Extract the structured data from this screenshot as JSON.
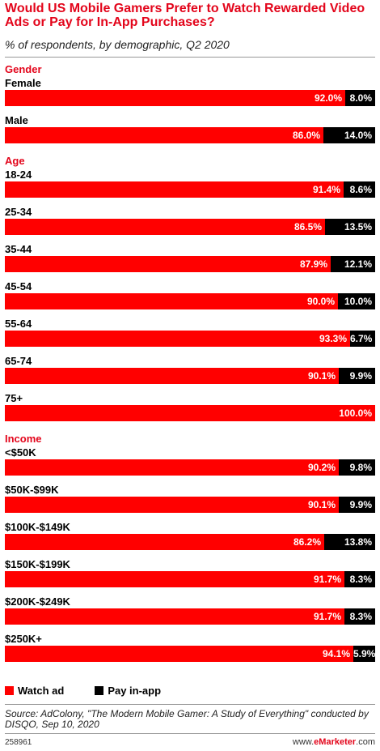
{
  "title": "Would US Mobile Gamers Prefer to Watch Rewarded Video Ads or Pay for In-App Purchases?",
  "subtitle": "% of respondents, by demographic, Q2 2020",
  "legend": {
    "watch_label": "Watch ad",
    "pay_label": "Pay in-app"
  },
  "colors": {
    "watch": "#ff0000",
    "pay": "#000000",
    "group_heading": "#e3051b"
  },
  "source": "Source: AdColony, \"The Modern Mobile Gamer: A Study of Everything\" conducted by DISQO, Sep 10, 2020",
  "chart_id": "258961",
  "brand_prefix": "www.",
  "brand_name": "eMarketer",
  "brand_suffix": ".com",
  "chart_data": {
    "type": "bar",
    "orientation": "horizontal",
    "stacked": true,
    "unit": "%",
    "xlim": [
      0,
      100
    ],
    "grid": false,
    "legend_position": "bottom",
    "series": [
      {
        "name": "Watch ad",
        "color": "#ff0000"
      },
      {
        "name": "Pay in-app",
        "color": "#000000"
      }
    ],
    "groups": [
      {
        "name": "Gender",
        "rows": [
          {
            "label": "Female",
            "watch": 92.0,
            "pay": 8.0,
            "watch_text": "92.0%",
            "pay_text": "8.0%"
          },
          {
            "label": "Male",
            "watch": 86.0,
            "pay": 14.0,
            "watch_text": "86.0%",
            "pay_text": "14.0%"
          }
        ]
      },
      {
        "name": "Age",
        "rows": [
          {
            "label": "18-24",
            "watch": 91.4,
            "pay": 8.6,
            "watch_text": "91.4%",
            "pay_text": "8.6%"
          },
          {
            "label": "25-34",
            "watch": 86.5,
            "pay": 13.5,
            "watch_text": "86.5%",
            "pay_text": "13.5%"
          },
          {
            "label": "35-44",
            "watch": 87.9,
            "pay": 12.1,
            "watch_text": "87.9%",
            "pay_text": "12.1%"
          },
          {
            "label": "45-54",
            "watch": 90.0,
            "pay": 10.0,
            "watch_text": "90.0%",
            "pay_text": "10.0%"
          },
          {
            "label": "55-64",
            "watch": 93.3,
            "pay": 6.7,
            "watch_text": "93.3%",
            "pay_text": "6.7%"
          },
          {
            "label": "65-74",
            "watch": 90.1,
            "pay": 9.9,
            "watch_text": "90.1%",
            "pay_text": "9.9%"
          },
          {
            "label": "75+",
            "watch": 100.0,
            "pay": 0.0,
            "watch_text": "100.0%",
            "pay_text": ""
          }
        ]
      },
      {
        "name": "Income",
        "rows": [
          {
            "label": "<$50K",
            "watch": 90.2,
            "pay": 9.8,
            "watch_text": "90.2%",
            "pay_text": "9.8%"
          },
          {
            "label": "$50K-$99K",
            "watch": 90.1,
            "pay": 9.9,
            "watch_text": "90.1%",
            "pay_text": "9.9%"
          },
          {
            "label": "$100K-$149K",
            "watch": 86.2,
            "pay": 13.8,
            "watch_text": "86.2%",
            "pay_text": "13.8%"
          },
          {
            "label": "$150K-$199K",
            "watch": 91.7,
            "pay": 8.3,
            "watch_text": "91.7%",
            "pay_text": "8.3%"
          },
          {
            "label": "$200K-$249K",
            "watch": 91.7,
            "pay": 8.3,
            "watch_text": "91.7%",
            "pay_text": "8.3%"
          },
          {
            "label": "$250K+",
            "watch": 94.1,
            "pay": 5.9,
            "watch_text": "94.1%",
            "pay_text": "5.9%"
          }
        ]
      }
    ]
  }
}
